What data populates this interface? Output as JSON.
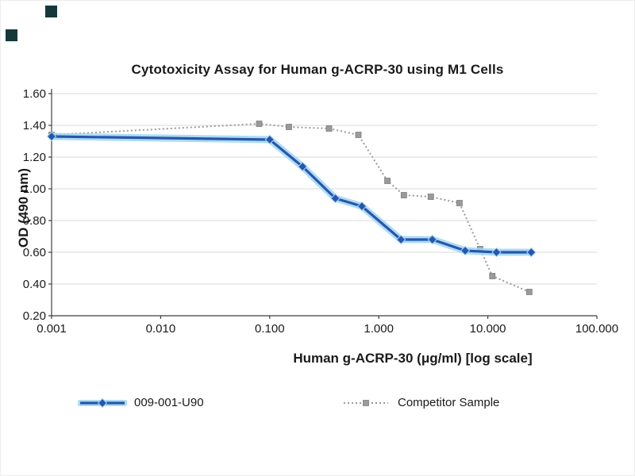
{
  "decor": {
    "mark_color": "#15393a"
  },
  "chart_data": {
    "type": "line",
    "title": "Cytotoxicity Assay for Human g-ACRP-30 using M1 Cells",
    "xlabel": "Human g-ACRP-30 (μg/ml) [log scale]",
    "ylabel": "OD (490 nm)",
    "x_scale": "log",
    "xlim": [
      0.001,
      100
    ],
    "ylim": [
      0.2,
      1.6
    ],
    "x_ticks": [
      0.001,
      0.01,
      0.1,
      1,
      10,
      100
    ],
    "x_tick_labels": [
      "0.001",
      "0.010",
      "0.100",
      "1.000",
      "10.000",
      "100.000"
    ],
    "y_ticks": [
      0.2,
      0.4,
      0.6,
      0.8,
      1.0,
      1.2,
      1.4,
      1.6
    ],
    "y_tick_labels": [
      "0.20",
      "0.40",
      "0.60",
      "0.80",
      "1.00",
      "1.20",
      "1.40",
      "1.60"
    ],
    "grid": "horizontal",
    "legend_position": "bottom",
    "colors": {
      "grid": "#d9d9d9",
      "axis": "#3f3f3f",
      "text": "#1a1a1a"
    },
    "series": [
      {
        "name": "009-001-U90",
        "color": "#2a55ad",
        "halo": "#9ed7f2",
        "marker": "diamond",
        "line": "solid",
        "points": [
          [
            0.001,
            1.33
          ],
          [
            0.1,
            1.31
          ],
          [
            0.2,
            1.14
          ],
          [
            0.4,
            0.94
          ],
          [
            0.7,
            0.89
          ],
          [
            1.6,
            0.68
          ],
          [
            3.1,
            0.68
          ],
          [
            6.2,
            0.61
          ],
          [
            12,
            0.6
          ],
          [
            25,
            0.6
          ]
        ]
      },
      {
        "name": "Competitor Sample",
        "color": "#9a9a9a",
        "marker": "square",
        "line": "dotted",
        "points": [
          [
            0.001,
            1.34
          ],
          [
            0.08,
            1.41
          ],
          [
            0.15,
            1.39
          ],
          [
            0.35,
            1.38
          ],
          [
            0.65,
            1.34
          ],
          [
            1.2,
            1.05
          ],
          [
            1.7,
            0.96
          ],
          [
            3.0,
            0.95
          ],
          [
            5.5,
            0.91
          ],
          [
            8.5,
            0.62
          ],
          [
            11,
            0.45
          ],
          [
            24,
            0.35
          ]
        ]
      }
    ]
  }
}
